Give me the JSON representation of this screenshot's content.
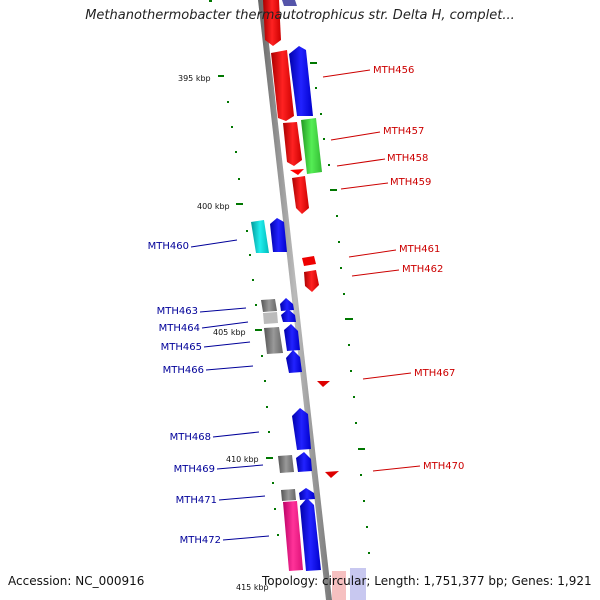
{
  "title": "Methanothermobacter thermautotrophicus str. Delta H, complet...",
  "accession": "Accession: NC_000916",
  "summary": "Topology: circular; Length: 1,751,377 bp; Genes: 1,921",
  "colors": {
    "red": "#ff0000",
    "blue": "#0000ee",
    "green": "#33cc33",
    "cyan": "#00cccc",
    "gray": "#777777",
    "magenta": "#ee1188",
    "label_red": "#cc0000",
    "label_blue": "#000099",
    "tick_green": "#007700"
  },
  "kbp_labels": [
    "395 kbp",
    "400 kbp",
    "405 kbp",
    "410 kbp",
    "415 kbp"
  ],
  "genes_right": [
    "MTH456",
    "MTH457",
    "MTH458",
    "MTH459",
    "MTH461",
    "MTH462",
    "MTH467",
    "MTH470"
  ],
  "genes_left": [
    "MTH460",
    "MTH463",
    "MTH464",
    "MTH465",
    "MTH466",
    "MTH468",
    "MTH469",
    "MTH471",
    "MTH472"
  ]
}
